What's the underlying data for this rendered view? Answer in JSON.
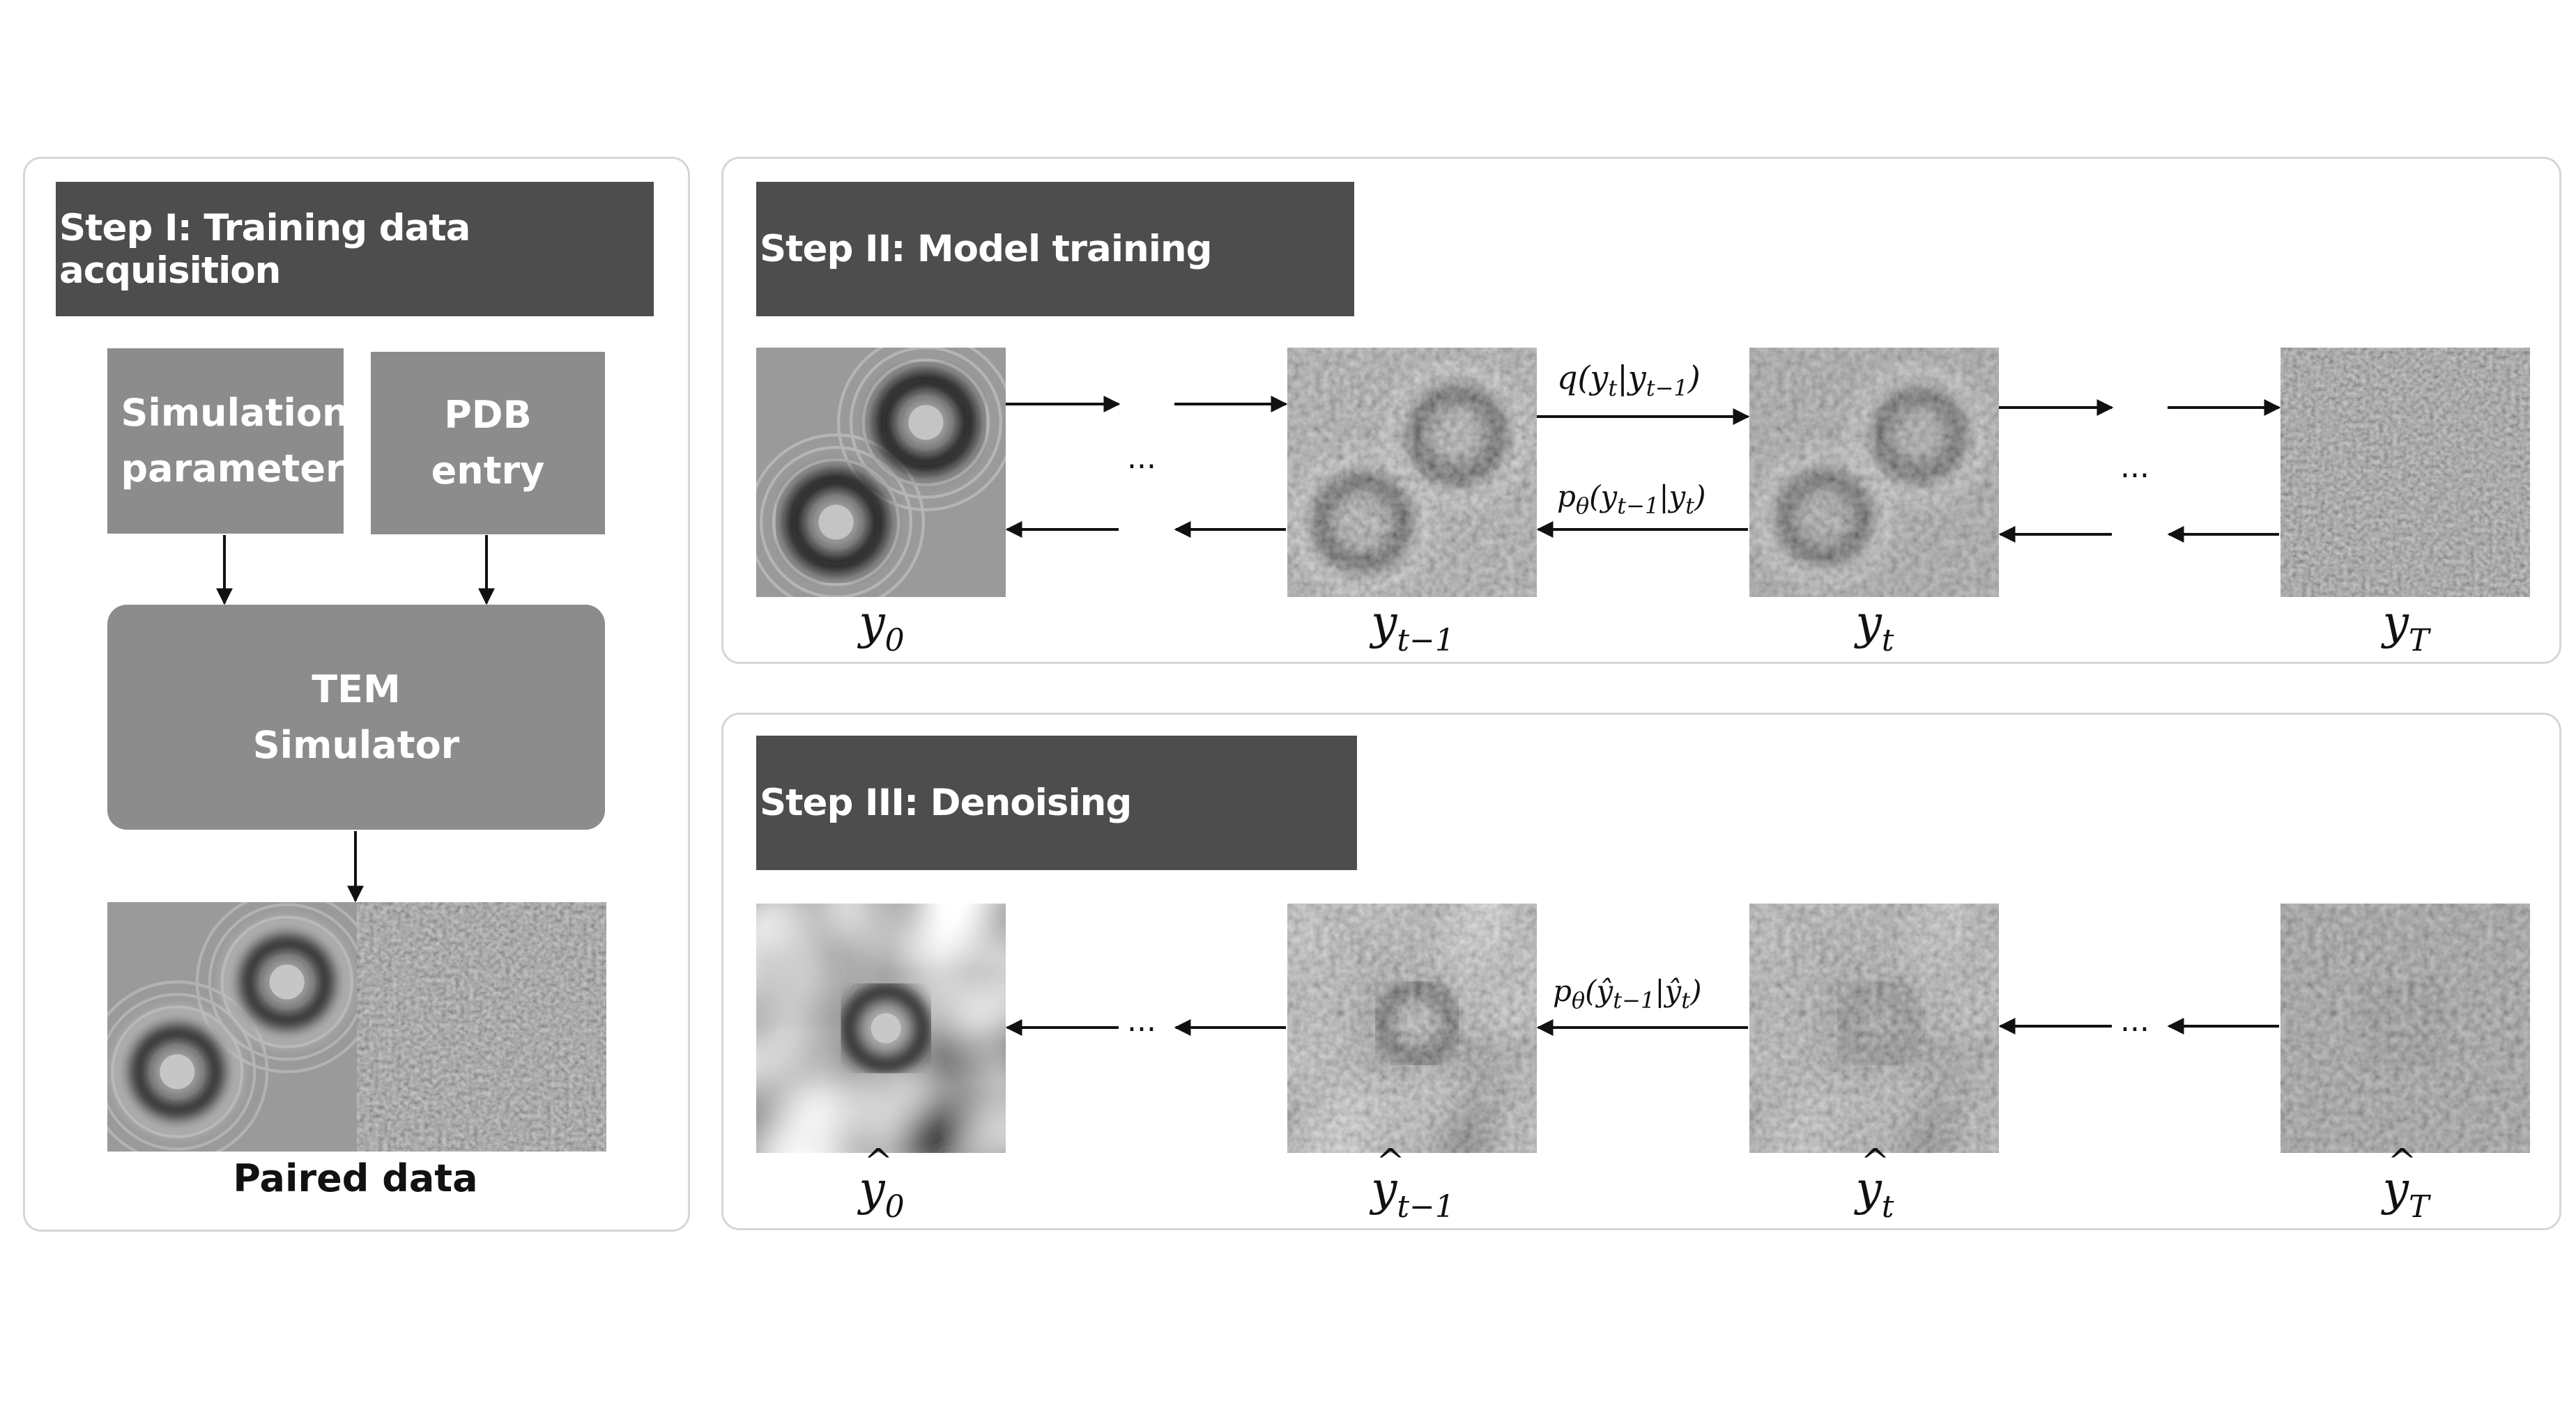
{
  "step1": {
    "title": "Step I: Training data acquisition",
    "sim_params": "Simulation parameters",
    "pdb": "PDB entry",
    "tem": "TEM Simulator",
    "paired_label": "Paired data"
  },
  "step2": {
    "title": "Step II: Model training",
    "labels": {
      "y0": "y",
      "y0_sub": "0",
      "yt1": "y",
      "yt1_sub": "t−1",
      "yt": "y",
      "yt_sub": "t",
      "yT": "y",
      "yT_sub": "T"
    },
    "forward_fn": "q(y",
    "forward_fn_sub1": "t",
    "forward_fn_mid": "|y",
    "forward_fn_sub2": "t−1",
    "forward_fn_end": ")",
    "reverse_fn": "p",
    "reverse_fn_theta": "θ",
    "reverse_fn_a": "(y",
    "reverse_fn_sub1": "t−1",
    "reverse_fn_mid": "|y",
    "reverse_fn_sub2": "t",
    "reverse_fn_end": ")",
    "ellipsis": "..."
  },
  "step3": {
    "title": "Step III: Denoising",
    "labels": {
      "y0": "y",
      "y0_sub": "0",
      "yt1": "y",
      "yt1_sub": "t−1",
      "yt": "y",
      "yt_sub": "t",
      "yT": "y",
      "yT_sub": "T"
    },
    "reverse_fn": "p",
    "reverse_fn_theta": "θ",
    "reverse_fn_a": "(ŷ",
    "reverse_fn_sub1": "t−1",
    "reverse_fn_mid": "|ŷ",
    "reverse_fn_sub2": "t",
    "reverse_fn_end": ")",
    "ellipsis": "..."
  }
}
